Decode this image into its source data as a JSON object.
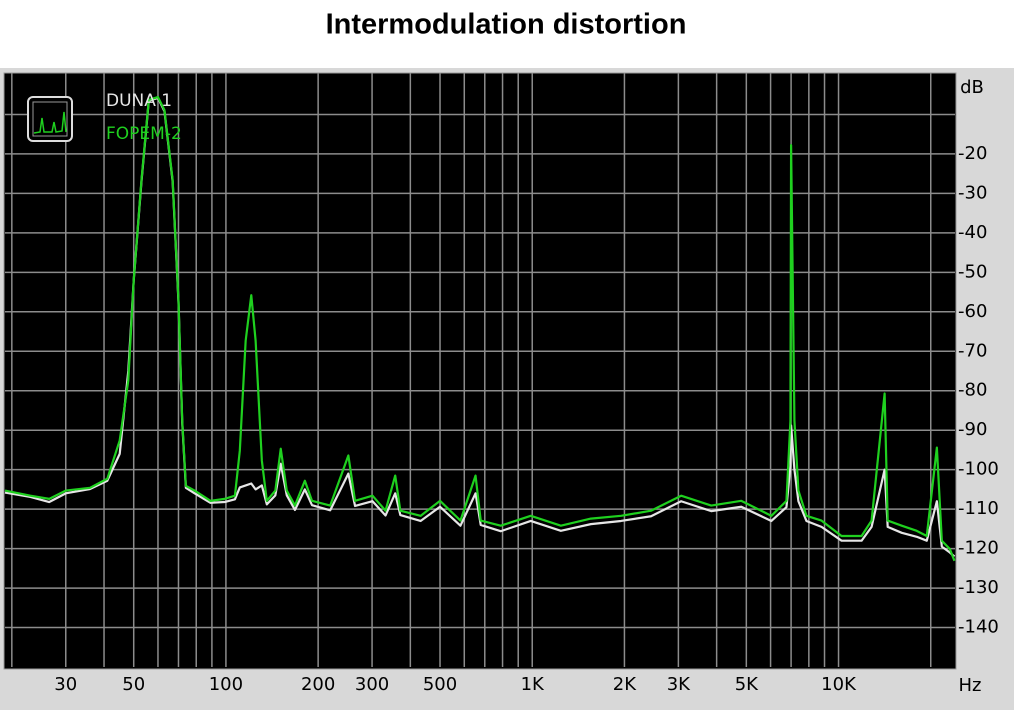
{
  "chart_data": {
    "type": "line",
    "title": "Intermodulation distortion",
    "xlabel": "Hz",
    "ylabel": "dB",
    "xscale": "log",
    "grid": true,
    "legend": "top-left",
    "xlim": [
      19,
      24000
    ],
    "ylim": [
      -150,
      0
    ],
    "xticks": [
      30,
      50,
      100,
      200,
      300,
      500,
      {
        "value": 1000,
        "label": "1K"
      },
      {
        "value": 2000,
        "label": "2K"
      },
      {
        "value": 3000,
        "label": "3K"
      },
      {
        "value": 5000,
        "label": "5K"
      },
      {
        "value": 10000,
        "label": "10K"
      }
    ],
    "xminor_ticks": [
      20,
      40,
      60,
      70,
      80,
      90,
      400,
      600,
      700,
      800,
      900,
      4000,
      6000,
      7000,
      8000,
      9000,
      20000
    ],
    "yticks": [
      -20,
      -30,
      -40,
      -50,
      -60,
      -70,
      -80,
      -90,
      -100,
      -110,
      -120,
      -130,
      -140
    ],
    "yminor_ticks": [
      -10
    ],
    "x": [
      19,
      23,
      26.5,
      30,
      36,
      41,
      45,
      48,
      50,
      53,
      56,
      60,
      63,
      67,
      70,
      72,
      74,
      79,
      89,
      99,
      107,
      111,
      116,
      121,
      125,
      131,
      136,
      145,
      151,
      158,
      168,
      181,
      191,
      219,
      251,
      264,
      301,
      332,
      357,
      371,
      432,
      500,
      583,
      653,
      679,
      789,
      989,
      1240,
      1554,
      1949,
      2443,
      3063,
      3840,
      4815,
      6036,
      6760,
      6966,
      7000,
      7178,
      7396,
      7857,
      8800,
      10230,
      11890,
      12820,
      14140,
      14470,
      16080,
      18000,
      19410,
      20940,
      21740,
      23090,
      23900
    ],
    "series": [
      {
        "name": "DUNA 1",
        "color": "#e6e6e6",
        "values": [
          -105.8,
          -106.9,
          -108.2,
          -106,
          -104.9,
          -102.8,
          -96,
          -75,
          -52,
          -27,
          -6.5,
          -5.8,
          -9.2,
          -27,
          -57.5,
          -88,
          -104.6,
          -106,
          -108.4,
          -108.2,
          -107.5,
          -104.5,
          -104,
          -103.5,
          -105,
          -104,
          -108.8,
          -106.5,
          -98.5,
          -106.5,
          -110.2,
          -105,
          -109,
          -110.3,
          -101,
          -109.2,
          -108,
          -111.6,
          -106,
          -111.5,
          -113,
          -109.4,
          -114.2,
          -106,
          -114,
          -115.6,
          -113,
          -115.5,
          -113.8,
          -113,
          -111.8,
          -108,
          -110.5,
          -109.4,
          -113,
          -109.5,
          -99,
          -88.8,
          -100,
          -108,
          -113,
          -114.5,
          -118,
          -118,
          -114.5,
          -100,
          -114.5,
          -116,
          -117,
          -118,
          -108,
          -119.5,
          -121,
          -122
        ]
      },
      {
        "name": "FOPEM-2",
        "color": "#1fd01f",
        "values": [
          -105.3,
          -106.6,
          -107.4,
          -105.3,
          -104.6,
          -102.3,
          -92.6,
          -77.4,
          -52,
          -26.6,
          -6.3,
          -5.6,
          -8.9,
          -26.6,
          -57.1,
          -87.6,
          -104.1,
          -105.3,
          -107.9,
          -107.4,
          -106.6,
          -95.2,
          -67.3,
          -55.8,
          -67.3,
          -97.7,
          -107.9,
          -105.3,
          -94.7,
          -105.3,
          -109.1,
          -102.8,
          -107.9,
          -109.1,
          -96.4,
          -107.9,
          -106.6,
          -110.4,
          -101.5,
          -110.4,
          -111.7,
          -107.9,
          -112.9,
          -101.5,
          -112.9,
          -114.2,
          -111.7,
          -114.2,
          -112.4,
          -111.7,
          -110.4,
          -106.6,
          -109.1,
          -107.9,
          -111.7,
          -107.9,
          -87.6,
          -17.8,
          -87.6,
          -105.3,
          -111.7,
          -112.9,
          -116.8,
          -116.8,
          -112.9,
          -80.7,
          -112.9,
          -114.2,
          -115.5,
          -116.8,
          -94.4,
          -118,
          -120.1,
          -123.1
        ]
      }
    ]
  }
}
